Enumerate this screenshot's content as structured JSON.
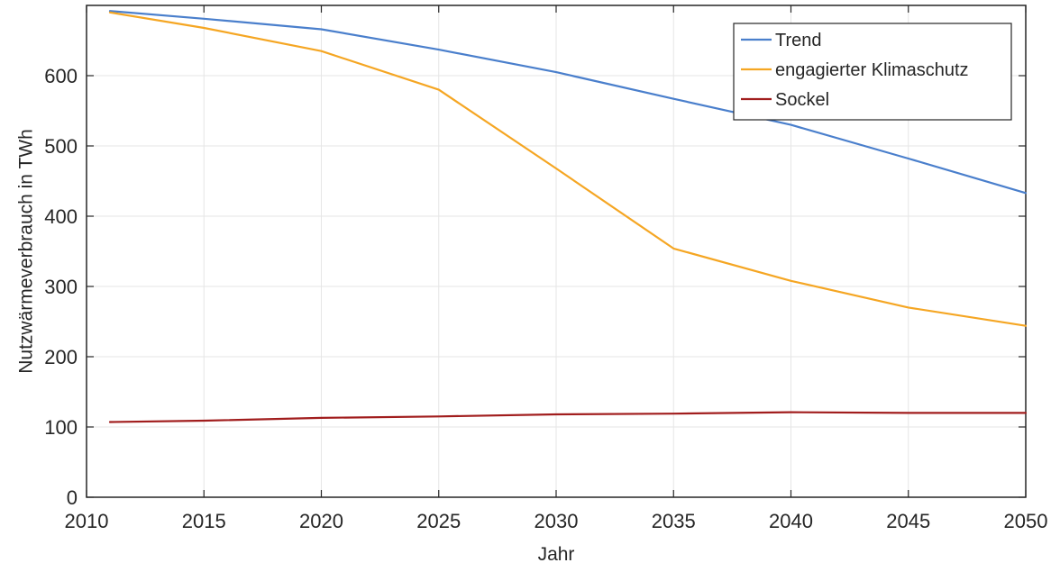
{
  "chart_data": {
    "type": "line",
    "title": "",
    "xlabel": "Jahr",
    "ylabel": "Nutzwärmeverbrauch in TWh",
    "xlim": [
      2010,
      2050
    ],
    "ylim": [
      0,
      700
    ],
    "xticks": [
      2010,
      2015,
      2020,
      2025,
      2030,
      2035,
      2040,
      2045,
      2050
    ],
    "yticks": [
      0,
      100,
      200,
      300,
      400,
      500,
      600
    ],
    "xtick_labels": [
      "2010",
      "2015",
      "2020",
      "2025",
      "2030",
      "2035",
      "2040",
      "2045",
      "2050"
    ],
    "ytick_labels": [
      "0",
      "100",
      "200",
      "300",
      "400",
      "500",
      "600"
    ],
    "grid": true,
    "legend_position": "top-right",
    "series": [
      {
        "name": "Trend",
        "color": "#4A7FCC",
        "points": [
          [
            2011,
            692
          ],
          [
            2015,
            681
          ],
          [
            2020,
            666
          ],
          [
            2025,
            637
          ],
          [
            2030,
            605
          ],
          [
            2035,
            567
          ],
          [
            2040,
            530
          ],
          [
            2045,
            482
          ],
          [
            2050,
            433
          ]
        ]
      },
      {
        "name": "engagierter Klimaschutz",
        "color": "#F5A623",
        "points": [
          [
            2011,
            690
          ],
          [
            2015,
            668
          ],
          [
            2020,
            635
          ],
          [
            2025,
            580
          ],
          [
            2030,
            468
          ],
          [
            2035,
            354
          ],
          [
            2040,
            308
          ],
          [
            2045,
            270
          ],
          [
            2050,
            244
          ]
        ]
      },
      {
        "name": "Sockel",
        "color": "#A11D1D",
        "points": [
          [
            2011,
            107
          ],
          [
            2015,
            109
          ],
          [
            2020,
            113
          ],
          [
            2025,
            115
          ],
          [
            2030,
            118
          ],
          [
            2035,
            119
          ],
          [
            2040,
            121
          ],
          [
            2045,
            120
          ],
          [
            2050,
            120
          ]
        ]
      }
    ]
  }
}
